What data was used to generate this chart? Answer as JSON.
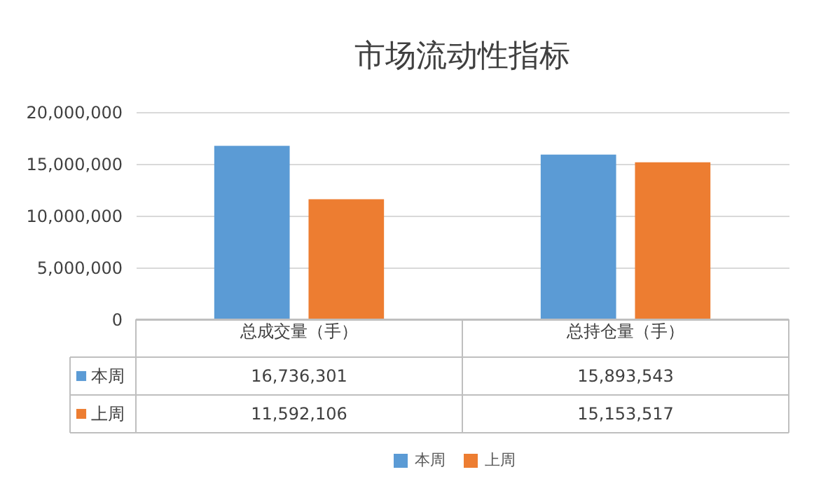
{
  "chart_data": {
    "type": "bar",
    "title": "市场流动性指标",
    "categories": [
      "总成交量（手）",
      "总持仓量（手）"
    ],
    "series": [
      {
        "name": "本周",
        "color": "#5b9bd5",
        "values": [
          16736301,
          15893543
        ],
        "value_labels": [
          "16,736,301",
          "15,893,543"
        ]
      },
      {
        "name": "上周",
        "color": "#ed7d31",
        "values": [
          11592106,
          15153517
        ],
        "value_labels": [
          "11,592,106",
          "15,153,517"
        ]
      }
    ],
    "ylim": [
      0,
      20000000
    ],
    "yticks": [
      0,
      {
        "value": 5000000,
        "label": "5,000,000"
      },
      {
        "value": 10000000,
        "label": "10,000,000"
      },
      {
        "value": 15000000,
        "label": "15,000,000"
      },
      {
        "value": 20000000,
        "label": "20,000,000"
      }
    ],
    "grid": "y",
    "legend": "bottom"
  }
}
